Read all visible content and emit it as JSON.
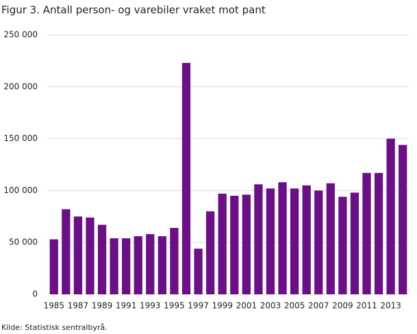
{
  "chart_data": {
    "type": "bar",
    "title": "Figur 3. Antall person- og varebiler vraket mot pant",
    "source": "Kilde: Statistisk sentralbyrå.",
    "categories": [
      "1985",
      null,
      "1987",
      null,
      "1989",
      null,
      "1991",
      null,
      "1993",
      null,
      "1995",
      null,
      "1997",
      null,
      "1999",
      null,
      "2001",
      null,
      "2003",
      null,
      "2005",
      null,
      "2007",
      null,
      "2009",
      null,
      "2011",
      null,
      "2013",
      null
    ],
    "values": [
      53000,
      82000,
      75000,
      74000,
      67000,
      54000,
      54000,
      56000,
      58000,
      56000,
      64000,
      223000,
      44000,
      80000,
      97000,
      95000,
      96000,
      106000,
      102000,
      108000,
      102000,
      105000,
      100000,
      107000,
      94000,
      98000,
      117000,
      117000,
      150000,
      144000
    ],
    "color": "#6c0f86",
    "ylim": [
      0,
      250000
    ],
    "yticks": [
      0,
      {
        "value": 50000,
        "label": "50 000"
      },
      {
        "value": 100000,
        "label": "100 000"
      },
      {
        "value": 150000,
        "label": "150 000"
      },
      {
        "value": 200000,
        "label": "200 000"
      },
      {
        "value": 250000,
        "label": "250 000"
      }
    ],
    "grid": true
  }
}
